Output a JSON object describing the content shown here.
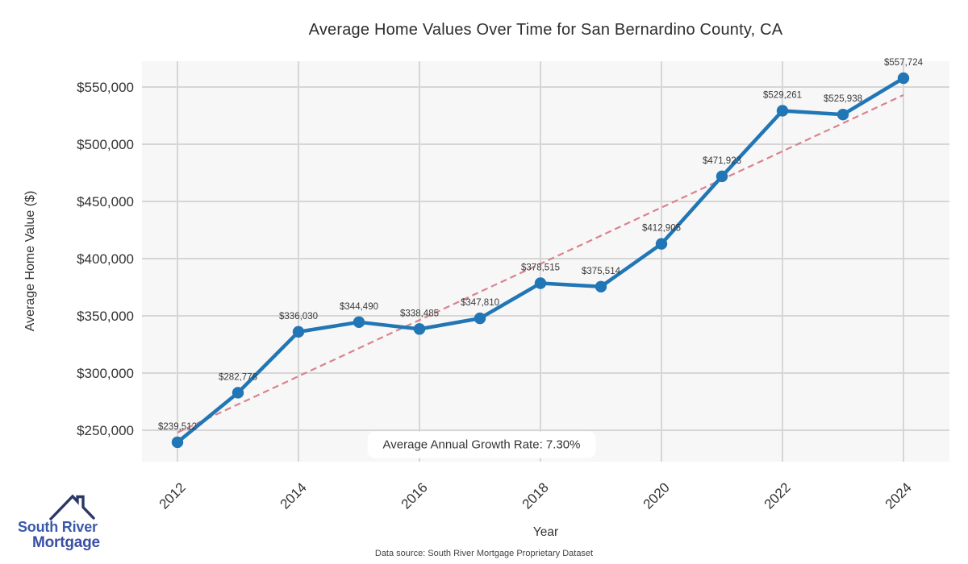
{
  "title": "Average Home Values Over Time for San Bernardino County, CA",
  "annotation": "Average Annual Growth Rate: 7.30%",
  "footer": "Data source: South River Mortgage Proprietary Dataset",
  "logo": {
    "line1": "South River",
    "line2": "Mortgage",
    "icon": "house-roof-icon"
  },
  "colors": {
    "line": "#2176b5",
    "marker": "#2176b5",
    "trend": "#d9838d",
    "grid": "#d6d6d6",
    "plot_bg": "#f7f7f7",
    "tick_text": "#333333",
    "data_label_text": "#3a3a3a",
    "annotation_bg": "#ffffff",
    "logo_text": "#3a5aa9",
    "logo_roof": "#2b3866"
  },
  "chart_data": {
    "type": "line",
    "title": "Average Home Values Over Time for San Bernardino County, CA",
    "xlabel": "Year",
    "ylabel": "Average Home Value ($)",
    "grid": true,
    "legend": "none",
    "xlim": [
      2011.4,
      2024.8
    ],
    "ylim": [
      222500,
      572500
    ],
    "x_ticks": [
      {
        "year": 2012,
        "label": "2012"
      },
      {
        "year": 2014,
        "label": "2014"
      },
      {
        "year": 2016,
        "label": "2016"
      },
      {
        "year": 2018,
        "label": "2018"
      },
      {
        "year": 2020,
        "label": "2020"
      },
      {
        "year": 2022,
        "label": "2022"
      },
      {
        "year": 2024,
        "label": "2024"
      }
    ],
    "y_ticks": [
      {
        "value": 250000,
        "label": "$250,000"
      },
      {
        "value": 300000,
        "label": "$300,000"
      },
      {
        "value": 350000,
        "label": "$350,000"
      },
      {
        "value": 400000,
        "label": "$400,000"
      },
      {
        "value": 450000,
        "label": "$450,000"
      },
      {
        "value": 500000,
        "label": "$500,000"
      },
      {
        "value": 550000,
        "label": "$550,000"
      }
    ],
    "points": [
      {
        "year": 2012,
        "value": 239512,
        "label": "$239,512"
      },
      {
        "year": 2013,
        "value": 282778,
        "label": "$282,778"
      },
      {
        "year": 2014,
        "value": 336030,
        "label": "$336,030"
      },
      {
        "year": 2015,
        "value": 344490,
        "label": "$344,490"
      },
      {
        "year": 2016,
        "value": 338485,
        "label": "$338,485"
      },
      {
        "year": 2017,
        "value": 347810,
        "label": "$347,810"
      },
      {
        "year": 2018,
        "value": 378515,
        "label": "$378,515"
      },
      {
        "year": 2019,
        "value": 375514,
        "label": "$375,514"
      },
      {
        "year": 2020,
        "value": 412905,
        "label": "$412,905"
      },
      {
        "year": 2021,
        "value": 471923,
        "label": "$471,923"
      },
      {
        "year": 2022,
        "value": 529261,
        "label": "$529,261"
      },
      {
        "year": 2023,
        "value": 525938,
        "label": "$525,938"
      },
      {
        "year": 2024,
        "value": 557724,
        "label": "$557,724"
      }
    ],
    "trendline": {
      "style": "dashed",
      "points": [
        {
          "year": 2012,
          "value": 248000
        },
        {
          "year": 2024,
          "value": 543000
        }
      ]
    },
    "annotation": "Average Annual Growth Rate: 7.30%"
  }
}
